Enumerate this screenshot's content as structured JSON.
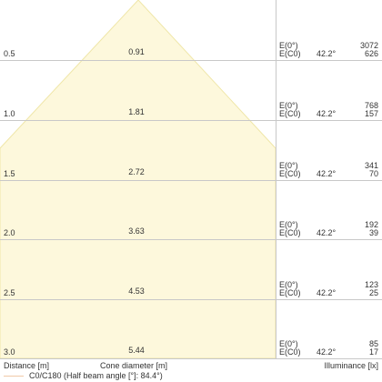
{
  "diagram": {
    "distance_header": "Distance [m]",
    "cone_header": "Cone diameter [m]",
    "illuminance_header": "Illuminance [lx]",
    "legend_text": "C0/C180 (Half beam angle [°]: 84.4°)",
    "rows": [
      {
        "distance": "0.5",
        "diameter": "0.91",
        "label_top": "E(0°)",
        "label_bottom": "E(C0)",
        "angle": "42.2°",
        "value_top": "3072",
        "value_bottom": "626"
      },
      {
        "distance": "1.0",
        "diameter": "1.81",
        "label_top": "E(0°)",
        "label_bottom": "E(C0)",
        "angle": "42.2°",
        "value_top": "768",
        "value_bottom": "157"
      },
      {
        "distance": "1.5",
        "diameter": "2.72",
        "label_top": "E(0°)",
        "label_bottom": "E(C0)",
        "angle": "42.2°",
        "value_top": "341",
        "value_bottom": "70"
      },
      {
        "distance": "2.0",
        "diameter": "3.63",
        "label_top": "E(0°)",
        "label_bottom": "E(C0)",
        "angle": "42.2°",
        "value_top": "192",
        "value_bottom": "39"
      },
      {
        "distance": "2.5",
        "diameter": "4.53",
        "label_top": "E(0°)",
        "label_bottom": "E(C0)",
        "angle": "42.2°",
        "value_top": "123",
        "value_bottom": "25"
      },
      {
        "distance": "3.0",
        "diameter": "5.44",
        "label_top": "E(0°)",
        "label_bottom": "E(C0)",
        "angle": "42.2°",
        "value_top": "85",
        "value_bottom": "17"
      }
    ],
    "colors": {
      "cone_fill": "#fdf8dc",
      "cone_edge": "#efe6a8",
      "grid": "#c8c8c8",
      "legend_line": "#f0c9a8"
    }
  }
}
